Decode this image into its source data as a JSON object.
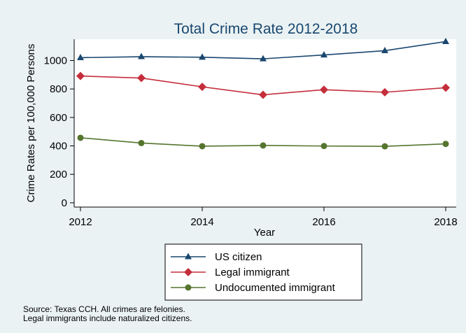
{
  "chart_data": {
    "type": "line",
    "title": "Total Crime Rate 2012-2018",
    "xlabel": "Year",
    "ylabel": "Crime Rates per 100,000 Persons",
    "x": [
      2012,
      2013,
      2014,
      2015,
      2016,
      2017,
      2018
    ],
    "xticks": [
      "2012",
      "2014",
      "2016",
      "2018"
    ],
    "xticks_values": [
      2012,
      2014,
      2016,
      2018
    ],
    "yticks": [
      "0",
      "200",
      "400",
      "600",
      "800",
      "1000"
    ],
    "yticks_values": [
      0,
      200,
      400,
      600,
      800,
      1000
    ],
    "xlim": [
      2012,
      2018
    ],
    "ylim": [
      -30,
      1150
    ],
    "grid": false,
    "legend_position": "bottom",
    "series": [
      {
        "name": "US citizen",
        "values": [
          1020,
          1027,
          1023,
          1012,
          1039,
          1069,
          1133
        ],
        "color": "#1a476f",
        "marker": "triangle"
      },
      {
        "name": "Legal immigrant",
        "values": [
          891,
          877,
          815,
          759,
          795,
          777,
          809
        ],
        "color": "#c42e3b",
        "marker": "diamond"
      },
      {
        "name": "Undocumented immigrant",
        "values": [
          457,
          420,
          398,
          403,
          399,
          397,
          414
        ],
        "color": "#55752f",
        "marker": "circle"
      }
    ]
  },
  "notes": [
    "Source: Texas CCH. All crimes are felonies.",
    "Legal immigrants include naturalized citizens."
  ]
}
